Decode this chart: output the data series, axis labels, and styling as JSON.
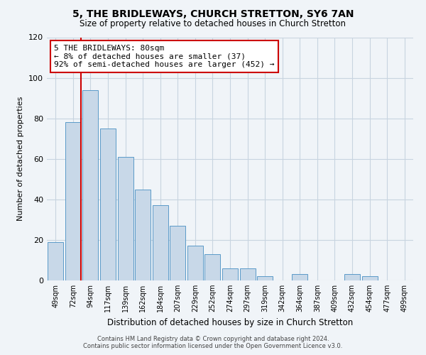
{
  "title": "5, THE BRIDLEWAYS, CHURCH STRETTON, SY6 7AN",
  "subtitle": "Size of property relative to detached houses in Church Stretton",
  "xlabel": "Distribution of detached houses by size in Church Stretton",
  "ylabel": "Number of detached properties",
  "bar_labels": [
    "49sqm",
    "72sqm",
    "94sqm",
    "117sqm",
    "139sqm",
    "162sqm",
    "184sqm",
    "207sqm",
    "229sqm",
    "252sqm",
    "274sqm",
    "297sqm",
    "319sqm",
    "342sqm",
    "364sqm",
    "387sqm",
    "409sqm",
    "432sqm",
    "454sqm",
    "477sqm",
    "499sqm"
  ],
  "bar_values": [
    19,
    78,
    94,
    75,
    61,
    45,
    37,
    27,
    17,
    13,
    6,
    6,
    2,
    0,
    3,
    0,
    0,
    3,
    2,
    0,
    0
  ],
  "bar_color": "#c8d8e8",
  "bar_edge_color": "#5a9ac8",
  "highlight_line_color": "#cc0000",
  "ylim": [
    0,
    120
  ],
  "yticks": [
    0,
    20,
    40,
    60,
    80,
    100,
    120
  ],
  "annotation_text": "5 THE BRIDLEWAYS: 80sqm\n← 8% of detached houses are smaller (37)\n92% of semi-detached houses are larger (452) →",
  "annotation_box_color": "#ffffff",
  "annotation_box_edge": "#cc0000",
  "footer_line1": "Contains HM Land Registry data © Crown copyright and database right 2024.",
  "footer_line2": "Contains public sector information licensed under the Open Government Licence v3.0.",
  "background_color": "#f0f4f8",
  "grid_color": "#c8d4e0"
}
